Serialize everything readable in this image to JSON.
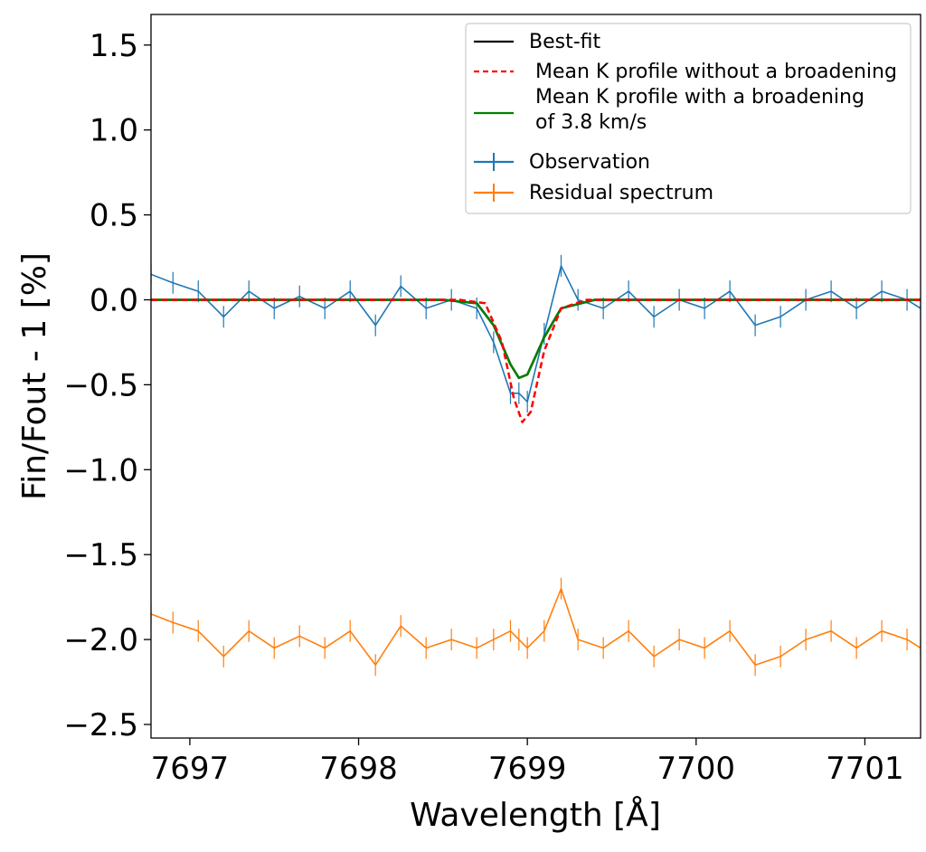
{
  "chart_data": {
    "type": "line",
    "xlabel": "Wavelength [Å]",
    "ylabel": "Fin/Fout - 1 [%]",
    "xlim": [
      7696.77,
      7701.33
    ],
    "ylim": [
      -2.58,
      1.68
    ],
    "xticks": [
      7697,
      7698,
      7699,
      7700,
      7701
    ],
    "yticks": [
      1.5,
      1.0,
      0.5,
      0.0,
      -0.5,
      -1.0,
      -1.5,
      -2.0,
      -2.5
    ],
    "xtick_labels": [
      "7697",
      "7698",
      "7699",
      "7700",
      "7701"
    ],
    "ytick_labels": [
      "1.5",
      "1.0",
      "0.5",
      "0.0",
      "−0.5",
      "−1.0",
      "−1.5",
      "−2.0",
      "−2.5"
    ],
    "grid": false,
    "legend_position": "top-right",
    "legend": [
      {
        "label": "Best-fit",
        "color": "#000000",
        "style": "solid",
        "marker": "none"
      },
      {
        "label": "Mean K profile without a broadening",
        "color": "#ff0000",
        "style": "dashed",
        "marker": "none"
      },
      {
        "label": "Mean K profile with a broadening\nof  3.8 km/s",
        "color": "#008000",
        "style": "solid",
        "marker": "none"
      },
      {
        "label": "Observation",
        "color": "#1f77b4",
        "style": "solid",
        "marker": "errorbar"
      },
      {
        "label": "Residual spectrum",
        "color": "#ff7f0e",
        "style": "solid",
        "marker": "errorbar"
      }
    ],
    "series": [
      {
        "name": "Best-fit",
        "color": "#000000",
        "x": [
          7696.77,
          7698.5,
          7698.7,
          7698.8,
          7698.9,
          7698.95,
          7699.0,
          7699.1,
          7699.2,
          7699.4,
          7701.33
        ],
        "y": [
          0.0,
          0.0,
          -0.02,
          -0.15,
          -0.38,
          -0.46,
          -0.44,
          -0.22,
          -0.05,
          0.0,
          0.0
        ]
      },
      {
        "name": "Mean K profile without a broadening",
        "color": "#ff0000",
        "x": [
          7696.77,
          7698.6,
          7698.75,
          7698.85,
          7698.92,
          7698.97,
          7699.02,
          7699.1,
          7699.2,
          7699.35,
          7701.33
        ],
        "y": [
          0.0,
          0.0,
          -0.02,
          -0.25,
          -0.58,
          -0.72,
          -0.66,
          -0.3,
          -0.05,
          0.0,
          0.0
        ]
      },
      {
        "name": "Mean K profile with a broadening of 3.8 km/s",
        "color": "#008000",
        "x": [
          7696.77,
          7698.5,
          7698.7,
          7698.8,
          7698.9,
          7698.95,
          7699.0,
          7699.1,
          7699.2,
          7699.4,
          7701.33
        ],
        "y": [
          0.0,
          0.0,
          -0.02,
          -0.15,
          -0.38,
          -0.46,
          -0.44,
          -0.22,
          -0.05,
          0.0,
          0.0
        ]
      },
      {
        "name": "Observation",
        "color": "#1f77b4",
        "x": [
          7696.77,
          7696.9,
          7697.05,
          7697.2,
          7697.35,
          7697.5,
          7697.65,
          7697.8,
          7697.95,
          7698.1,
          7698.25,
          7698.4,
          7698.55,
          7698.7,
          7698.8,
          7698.9,
          7698.95,
          7699.0,
          7699.1,
          7699.2,
          7699.3,
          7699.45,
          7699.6,
          7699.75,
          7699.9,
          7700.05,
          7700.2,
          7700.35,
          7700.5,
          7700.65,
          7700.8,
          7700.95,
          7701.1,
          7701.25,
          7701.33
        ],
        "y": [
          0.15,
          0.1,
          0.05,
          -0.1,
          0.05,
          -0.05,
          0.02,
          -0.05,
          0.05,
          -0.15,
          0.08,
          -0.05,
          0.0,
          -0.05,
          -0.25,
          -0.55,
          -0.55,
          -0.6,
          -0.2,
          0.2,
          0.0,
          -0.05,
          0.05,
          -0.1,
          0.0,
          -0.05,
          0.05,
          -0.15,
          -0.1,
          0.0,
          0.05,
          -0.05,
          0.05,
          0.0,
          -0.05
        ]
      },
      {
        "name": "Residual spectrum",
        "color": "#ff7f0e",
        "x": [
          7696.77,
          7696.9,
          7697.05,
          7697.2,
          7697.35,
          7697.5,
          7697.65,
          7697.8,
          7697.95,
          7698.1,
          7698.25,
          7698.4,
          7698.55,
          7698.7,
          7698.8,
          7698.9,
          7698.95,
          7699.0,
          7699.1,
          7699.2,
          7699.3,
          7699.45,
          7699.6,
          7699.75,
          7699.9,
          7700.05,
          7700.2,
          7700.35,
          7700.5,
          7700.65,
          7700.8,
          7700.95,
          7701.1,
          7701.25,
          7701.33
        ],
        "y": [
          -1.85,
          -1.9,
          -1.95,
          -2.1,
          -1.95,
          -2.05,
          -1.98,
          -2.05,
          -1.95,
          -2.15,
          -1.92,
          -2.05,
          -2.0,
          -2.05,
          -2.0,
          -1.95,
          -2.0,
          -2.05,
          -1.95,
          -1.7,
          -2.0,
          -2.05,
          -1.95,
          -2.1,
          -2.0,
          -2.05,
          -1.95,
          -2.15,
          -2.1,
          -2.0,
          -1.95,
          -2.05,
          -1.95,
          -2.0,
          -2.05
        ]
      }
    ]
  }
}
